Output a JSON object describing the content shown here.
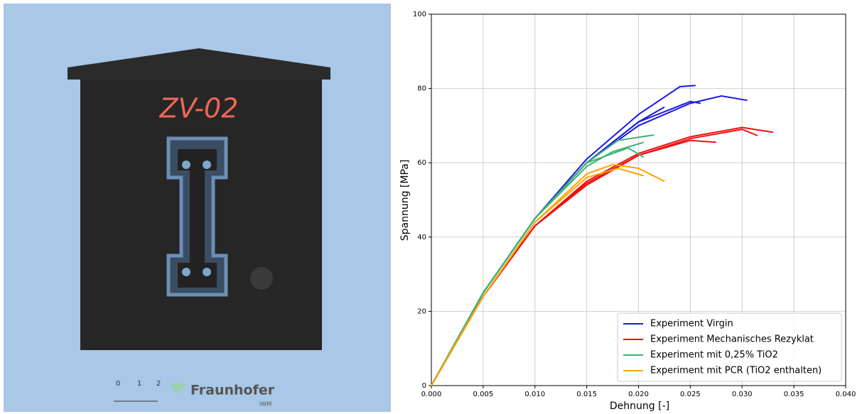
{
  "photo": {
    "label": "ZV-02",
    "scale_labels": [
      "0",
      "1",
      "2"
    ],
    "logo": "Fraunhofer",
    "institute": "IWM"
  },
  "chart_data": {
    "type": "line",
    "xlabel": "Dehnung [-]",
    "ylabel": "Spannung [MPa]",
    "xlim": [
      0,
      0.04
    ],
    "ylim": [
      0,
      100
    ],
    "xticks": [
      {
        "value": 0,
        "label": "0.000"
      },
      0.005,
      {
        "value": 0.01,
        "label": "0.010"
      },
      0.015,
      {
        "value": 0.02,
        "label": "0.020"
      },
      0.025,
      {
        "value": 0.03,
        "label": "0.030"
      },
      0.035,
      {
        "value": 0.04,
        "label": "0.040"
      }
    ],
    "yticks": [
      0,
      20,
      40,
      60,
      80,
      100
    ],
    "grid": true,
    "legend": "lower right",
    "series": [
      {
        "name": "Experiment Virgin",
        "color": "#1a1adf",
        "curves": [
          {
            "x": [
              0,
              0.005,
              0.01,
              0.015,
              0.02,
              0.024,
              0.0255
            ],
            "values": [
              0,
              25,
              45,
              61,
              73,
              80.5,
              80.8
            ]
          },
          {
            "x": [
              0,
              0.005,
              0.01,
              0.015,
              0.02,
              0.025,
              0.028,
              0.0305
            ],
            "values": [
              0,
              25,
              45,
              60,
              70,
              76,
              78,
              76.8
            ]
          },
          {
            "x": [
              0,
              0.005,
              0.01,
              0.015,
              0.02,
              0.0225
            ],
            "values": [
              0,
              25,
              45,
              60,
              71,
              75
            ]
          },
          {
            "x": [
              0,
              0.005,
              0.01,
              0.015,
              0.02,
              0.025,
              0.026
            ],
            "values": [
              0,
              25,
              45,
              60,
              71,
              76.5,
              76
            ]
          }
        ]
      },
      {
        "name": "Experiment Mechanisches Rezyklat",
        "color": "#ee1111",
        "curves": [
          {
            "x": [
              0,
              0.005,
              0.01,
              0.015,
              0.02,
              0.025,
              0.03,
              0.033
            ],
            "values": [
              0,
              24,
              43,
              55,
              62.5,
              67,
              69.5,
              68.2
            ]
          },
          {
            "x": [
              0,
              0.005,
              0.01,
              0.015,
              0.02,
              0.025,
              0.03,
              0.0315
            ],
            "values": [
              0,
              24,
              43,
              54.5,
              62,
              66.5,
              69,
              67.3
            ]
          },
          {
            "x": [
              0,
              0.005,
              0.01,
              0.015,
              0.02,
              0.025,
              0.0275
            ],
            "values": [
              0,
              24,
              43,
              54,
              62,
              66,
              65.5
            ]
          }
        ]
      },
      {
        "name": "Experiment mit 0,25% TiO2",
        "color": "#3cb371",
        "curves": [
          {
            "x": [
              0,
              0.005,
              0.01,
              0.015,
              0.018,
              0.0215
            ],
            "values": [
              0,
              25,
              45,
              60,
              66,
              67.5
            ]
          },
          {
            "x": [
              0,
              0.005,
              0.01,
              0.015,
              0.019,
              0.0205
            ],
            "values": [
              0,
              25,
              45,
              60,
              64,
              61.5
            ]
          },
          {
            "x": [
              0,
              0.005,
              0.01,
              0.015,
              0.0175,
              0.0205
            ],
            "values": [
              0,
              25,
              45,
              59,
              63,
              65.5
            ]
          }
        ]
      },
      {
        "name": "Experiment mit PCR (TiO2 enthalten)",
        "color": "#ffa500",
        "curves": [
          {
            "x": [
              0,
              0.005,
              0.01,
              0.015,
              0.0175,
              0.02,
              0.0225
            ],
            "values": [
              0,
              24,
              44,
              57,
              59.5,
              58.5,
              55
            ]
          },
          {
            "x": [
              0,
              0.005,
              0.01,
              0.015,
              0.018,
              0.0205
            ],
            "values": [
              0,
              24,
              44,
              56,
              58.5,
              56.5
            ]
          }
        ]
      }
    ]
  }
}
